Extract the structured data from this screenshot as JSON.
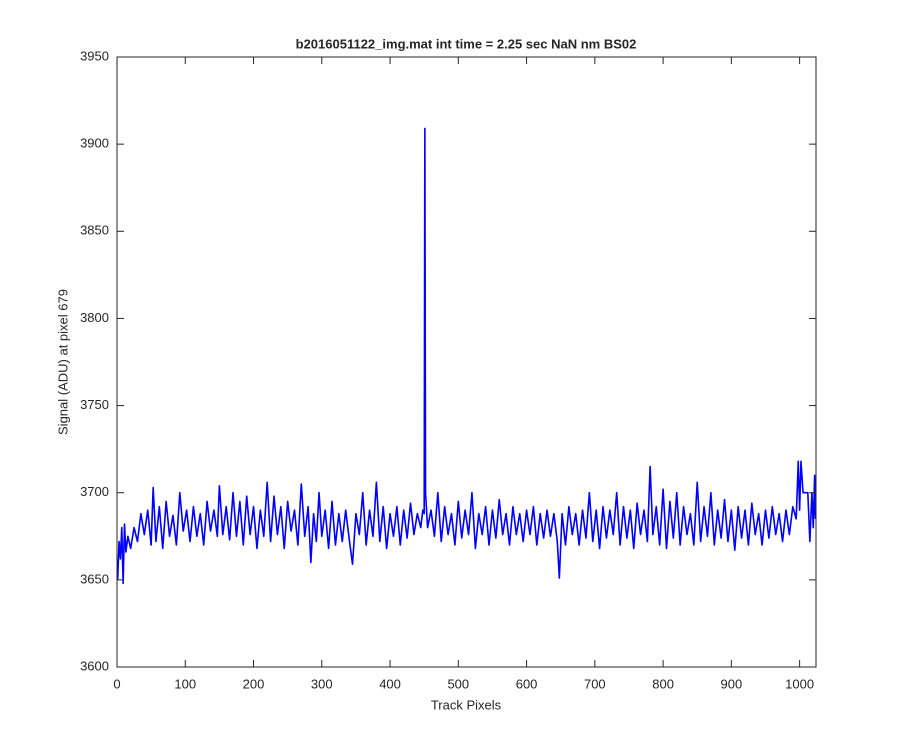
{
  "chart_data": {
    "type": "line",
    "title": "b2016051122_img.mat int time = 2.25 sec  NaN nm BS02",
    "xlabel": "Track Pixels",
    "ylabel": "Signal (ADU) at pixel 679",
    "x": [
      1,
      3,
      5,
      7,
      9,
      11,
      13,
      16,
      20,
      25,
      30,
      35,
      40,
      45,
      50,
      53,
      57,
      62,
      67,
      72,
      77,
      82,
      87,
      92,
      97,
      102,
      107,
      112,
      117,
      122,
      127,
      132,
      137,
      142,
      147,
      150,
      155,
      160,
      165,
      170,
      175,
      180,
      185,
      190,
      195,
      200,
      205,
      210,
      215,
      220,
      225,
      230,
      235,
      240,
      245,
      250,
      255,
      260,
      265,
      270,
      275,
      280,
      284,
      288,
      292,
      296,
      300,
      305,
      310,
      315,
      320,
      325,
      330,
      335,
      340,
      345,
      350,
      355,
      360,
      365,
      370,
      375,
      380,
      385,
      390,
      395,
      400,
      405,
      410,
      415,
      420,
      425,
      430,
      435,
      440,
      445,
      448,
      450,
      451,
      452,
      455,
      460,
      465,
      470,
      475,
      480,
      485,
      490,
      495,
      500,
      505,
      510,
      515,
      520,
      525,
      530,
      535,
      540,
      545,
      550,
      555,
      560,
      565,
      570,
      575,
      580,
      585,
      590,
      595,
      600,
      605,
      610,
      615,
      620,
      625,
      630,
      635,
      640,
      645,
      648,
      652,
      657,
      662,
      667,
      672,
      677,
      682,
      687,
      692,
      697,
      702,
      707,
      712,
      717,
      722,
      727,
      732,
      737,
      742,
      747,
      752,
      757,
      762,
      767,
      772,
      777,
      781,
      785,
      790,
      795,
      800,
      805,
      810,
      815,
      820,
      825,
      830,
      835,
      840,
      845,
      850,
      855,
      860,
      865,
      870,
      875,
      880,
      885,
      890,
      895,
      900,
      905,
      910,
      915,
      920,
      925,
      930,
      935,
      940,
      945,
      950,
      955,
      960,
      965,
      970,
      975,
      980,
      985,
      990,
      995,
      998,
      1000,
      1002,
      1005,
      1008,
      1012,
      1015,
      1018,
      1020,
      1022,
      1023
    ],
    "series": [
      {
        "color": "#0000ff",
        "values": [
          3650,
          3672,
          3662,
          3680,
          3648,
          3682,
          3666,
          3675,
          3668,
          3680,
          3672,
          3688,
          3676,
          3690,
          3670,
          3703,
          3672,
          3692,
          3668,
          3695,
          3675,
          3687,
          3670,
          3700,
          3678,
          3690,
          3672,
          3692,
          3675,
          3688,
          3670,
          3695,
          3678,
          3690,
          3675,
          3704,
          3676,
          3692,
          3673,
          3700,
          3675,
          3695,
          3670,
          3698,
          3676,
          3692,
          3668,
          3690,
          3675,
          3706,
          3672,
          3698,
          3676,
          3692,
          3668,
          3695,
          3678,
          3690,
          3670,
          3705,
          3675,
          3692,
          3660,
          3688,
          3672,
          3700,
          3675,
          3690,
          3668,
          3695,
          3670,
          3688,
          3672,
          3690,
          3674,
          3659,
          3688,
          3676,
          3700,
          3670,
          3690,
          3675,
          3706,
          3672,
          3692,
          3668,
          3688,
          3675,
          3692,
          3670,
          3690,
          3674,
          3694,
          3676,
          3688,
          3680,
          3690,
          3688,
          3909,
          3700,
          3680,
          3690,
          3675,
          3700,
          3672,
          3692,
          3676,
          3688,
          3670,
          3695,
          3674,
          3690,
          3676,
          3700,
          3668,
          3688,
          3676,
          3692,
          3670,
          3690,
          3674,
          3696,
          3676,
          3688,
          3670,
          3692,
          3676,
          3688,
          3672,
          3690,
          3676,
          3692,
          3670,
          3688,
          3674,
          3690,
          3675,
          3688,
          3672,
          3651,
          3688,
          3670,
          3692,
          3676,
          3688,
          3670,
          3690,
          3674,
          3700,
          3672,
          3690,
          3668,
          3692,
          3674,
          3690,
          3676,
          3700,
          3670,
          3692,
          3674,
          3690,
          3668,
          3694,
          3676,
          3690,
          3672,
          3715,
          3676,
          3692,
          3670,
          3702,
          3668,
          3695,
          3674,
          3700,
          3670,
          3692,
          3676,
          3688,
          3670,
          3706,
          3672,
          3692,
          3675,
          3700,
          3670,
          3690,
          3674,
          3696,
          3672,
          3690,
          3667,
          3692,
          3674,
          3690,
          3670,
          3694,
          3676,
          3688,
          3670,
          3690,
          3674,
          3692,
          3676,
          3688,
          3672,
          3690,
          3676,
          3692,
          3685,
          3718,
          3690,
          3718,
          3700,
          3700,
          3700,
          3672,
          3700,
          3680,
          3710,
          3685
        ]
      }
    ],
    "xlim": [
      0,
      1024
    ],
    "xticks": [
      0,
      100,
      200,
      300,
      400,
      500,
      600,
      700,
      800,
      900,
      1000
    ],
    "ylim": [
      3600,
      3950
    ],
    "yticks": [
      3600,
      3650,
      3700,
      3750,
      3800,
      3850,
      3900,
      3950
    ]
  }
}
